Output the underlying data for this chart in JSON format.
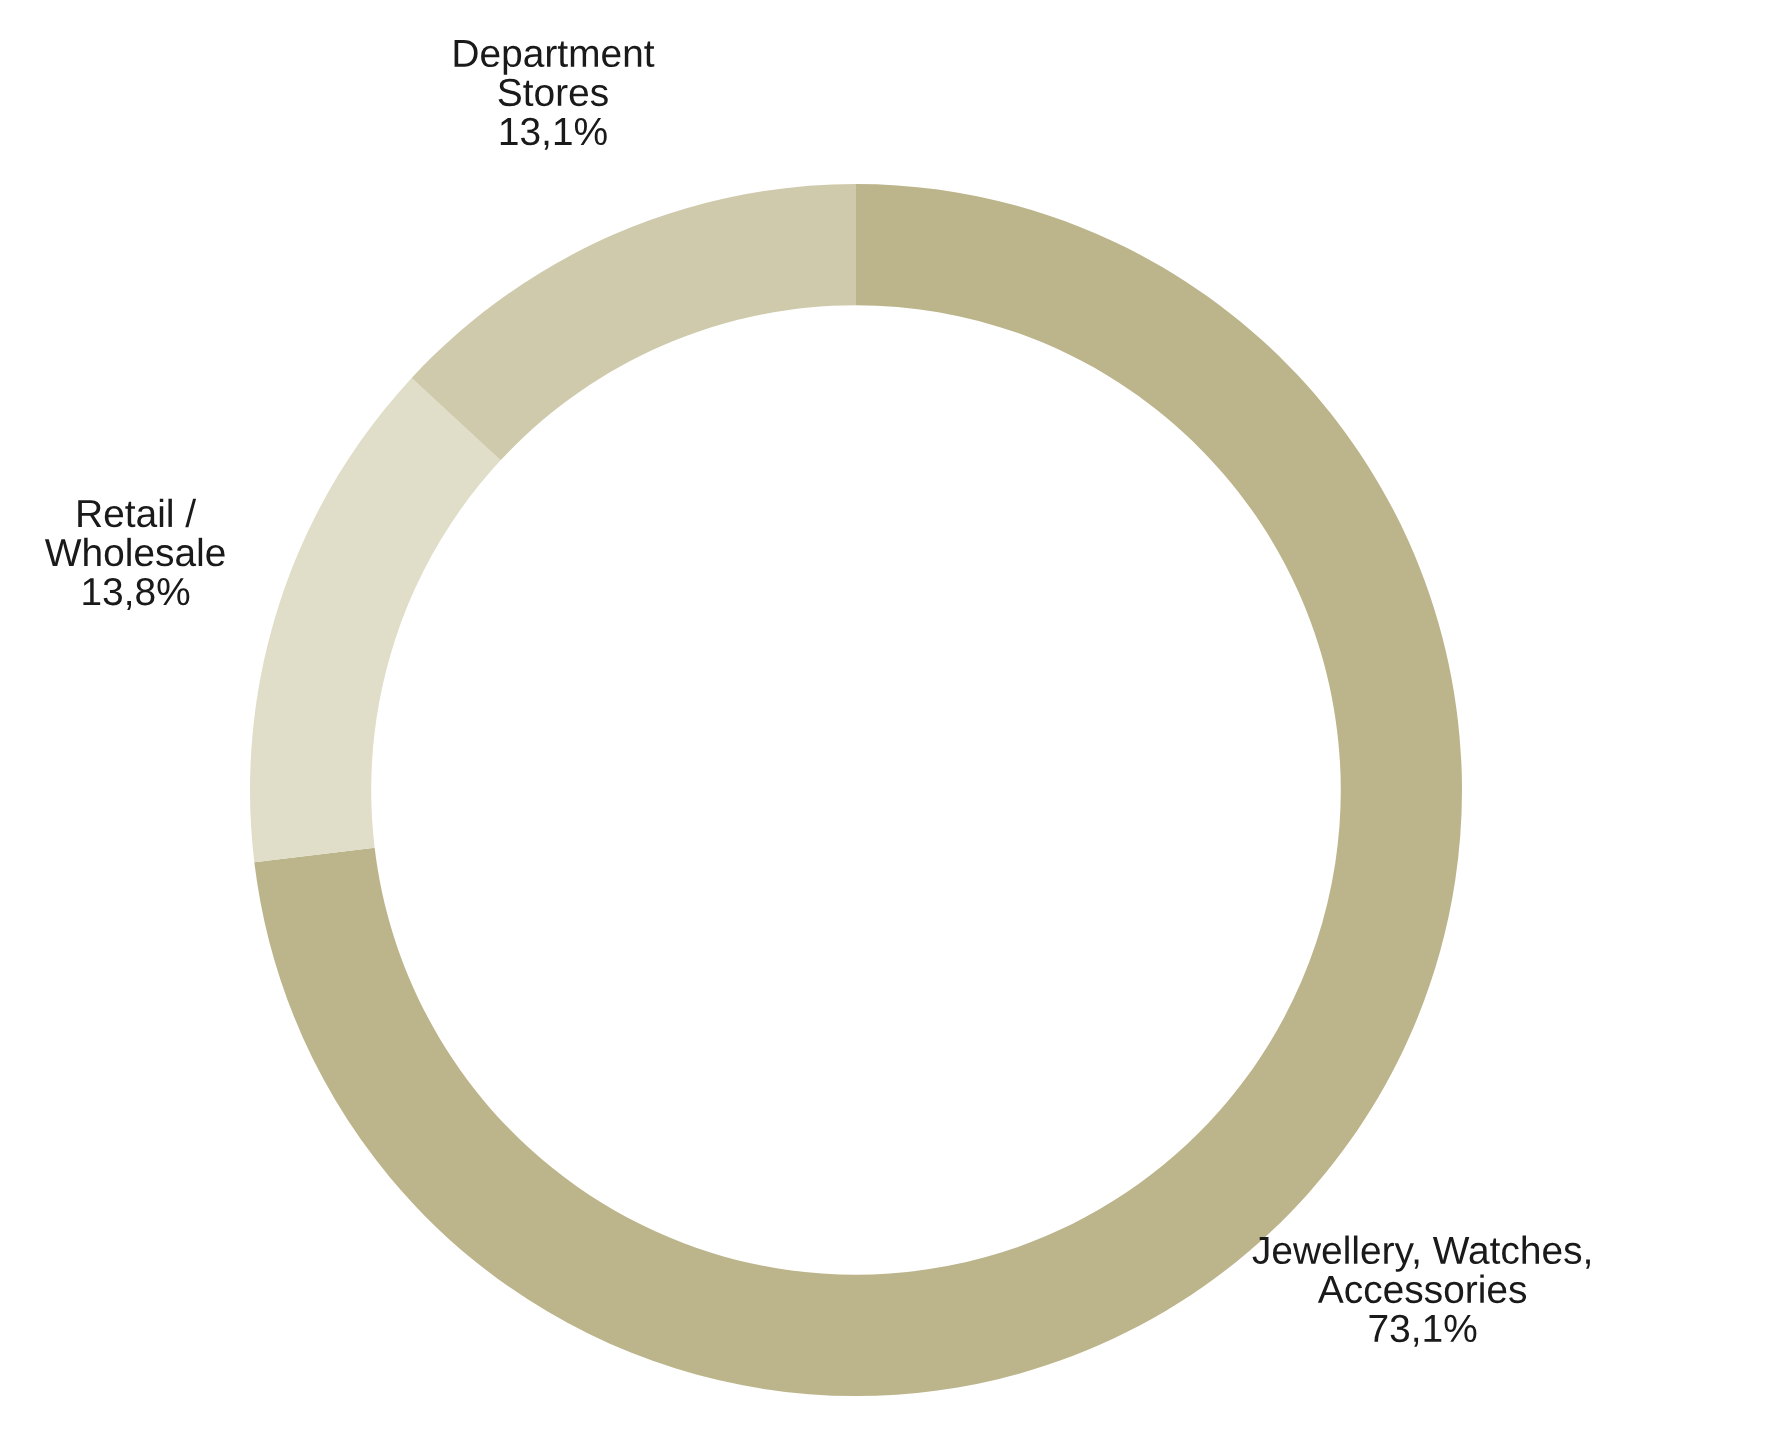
{
  "chart_data": {
    "type": "donut",
    "categories": [
      "Jewellery, Watches,\nAccessories",
      "Retail /\nWholesale",
      "Department\nStores"
    ],
    "values": [
      73.1,
      13.8,
      13.1
    ],
    "value_labels": [
      "73,1%",
      "13,8%",
      "13,1%"
    ],
    "colors": [
      "#bcb58b",
      "#e0ddc8",
      "#cfcaab"
    ],
    "legend": false
  }
}
